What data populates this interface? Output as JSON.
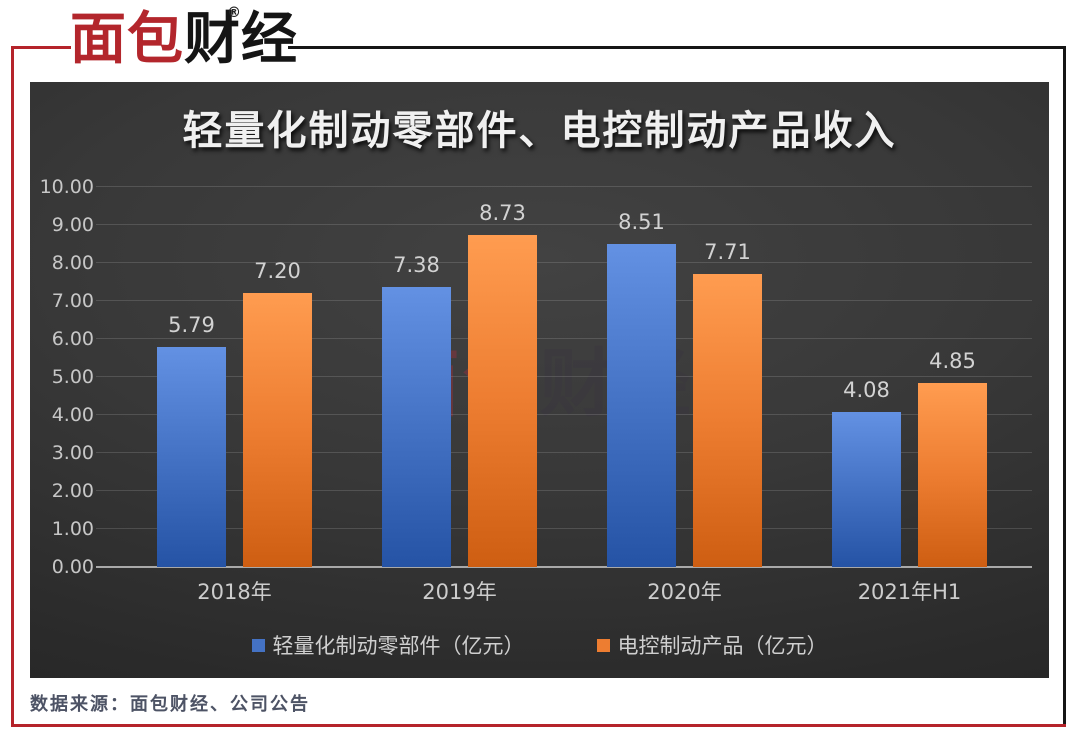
{
  "brand": {
    "logo_red": "面包",
    "logo_black": "财经",
    "registered": "®"
  },
  "watermark": {
    "text_red": "面包",
    "text_dark": "财经",
    "registered": "®"
  },
  "chart_data": {
    "type": "bar",
    "title": "轻量化制动零部件、电控制动产品收入",
    "categories": [
      "2018年",
      "2019年",
      "2020年",
      "2021年H1"
    ],
    "series": [
      {
        "name": "轻量化制动零部件（亿元）",
        "color": "#4472C4",
        "values": [
          5.79,
          7.38,
          8.51,
          4.08
        ]
      },
      {
        "name": "电控制动产品（亿元）",
        "color": "#ED7D31",
        "values": [
          7.2,
          8.73,
          7.71,
          4.85
        ]
      }
    ],
    "xlabel": "",
    "ylabel": "",
    "ylim": [
      0,
      10
    ],
    "ytick_step": 1.0,
    "ytick_decimals": 2,
    "value_label_decimals": 2,
    "grid": true,
    "legend_position": "bottom",
    "panel_style": "dark"
  },
  "footer": {
    "source": "数据来源：面包财经、公司公告"
  },
  "colors": {
    "accent_red": "#b5232a",
    "frame_black": "#161616",
    "bar_blue": "#4472C4",
    "bar_orange": "#ED7D31"
  }
}
